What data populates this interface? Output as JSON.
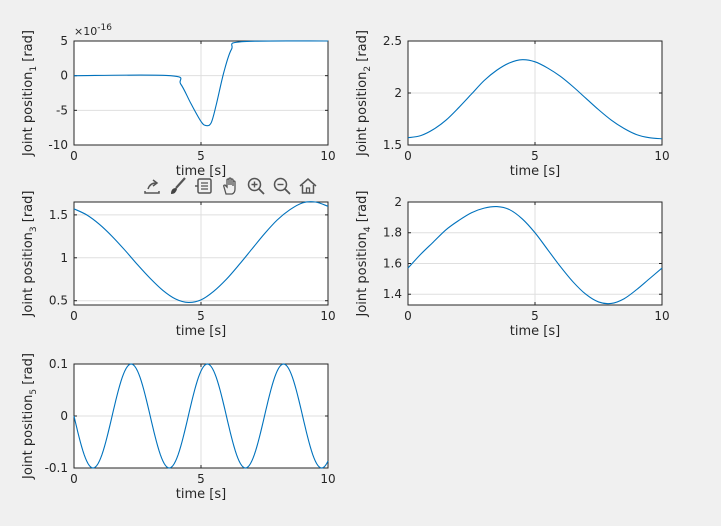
{
  "toolbar": {
    "items": [
      {
        "name": "export-icon"
      },
      {
        "name": "brush-icon"
      },
      {
        "name": "datatips-icon"
      },
      {
        "name": "pan-hand-icon"
      },
      {
        "name": "zoom-in-icon"
      },
      {
        "name": "zoom-out-icon"
      },
      {
        "name": "home-icon"
      }
    ]
  },
  "colors": {
    "series": "#0072bd",
    "background": "#f0f0f0",
    "axes": "#ffffff",
    "grid": "#dfdfdf"
  },
  "chart_data": [
    {
      "type": "line",
      "title": "",
      "xlabel": "time [s]",
      "ylabel": "Joint position",
      "ylabel_sub": "1",
      "ylabel_unit": " [rad]",
      "xlim": [
        0,
        10
      ],
      "ylim": [
        -10,
        5
      ],
      "xticks": [
        "0",
        "5",
        "10"
      ],
      "xtick_values": [
        0,
        5,
        10
      ],
      "yticks": [
        "5",
        "0",
        "-5",
        "-10"
      ],
      "ytick_values": [
        5,
        0,
        -5,
        -10
      ],
      "exponent_base": "×10",
      "exponent_power": "-16",
      "grid": true,
      "x": [
        0,
        3.8,
        4.2,
        4.6,
        5.0,
        5.2,
        5.4,
        5.6,
        5.9,
        6.2,
        6.6,
        10
      ],
      "y": [
        0,
        0,
        -1.2,
        -4.0,
        -6.6,
        -7.2,
        -6.8,
        -4.2,
        0.5,
        3.8,
        4.9,
        5.0
      ]
    },
    {
      "type": "line",
      "title": "",
      "xlabel": "time [s]",
      "ylabel": "Joint position",
      "ylabel_sub": "2",
      "ylabel_unit": " [rad]",
      "xlim": [
        0,
        10
      ],
      "ylim": [
        1.5,
        2.5
      ],
      "xticks": [
        "0",
        "5",
        "10"
      ],
      "xtick_values": [
        0,
        5,
        10
      ],
      "yticks": [
        "2.5",
        "2",
        "1.5"
      ],
      "ytick_values": [
        2.5,
        2,
        1.5
      ],
      "grid": true,
      "x": [
        0,
        0.5,
        1,
        1.5,
        2,
        2.5,
        3,
        3.5,
        4,
        4.5,
        5,
        5.5,
        6,
        6.5,
        7,
        7.5,
        8,
        8.5,
        9,
        9.5,
        10
      ],
      "y": [
        1.57,
        1.59,
        1.65,
        1.74,
        1.86,
        1.99,
        2.12,
        2.22,
        2.29,
        2.32,
        2.3,
        2.24,
        2.16,
        2.06,
        1.95,
        1.84,
        1.74,
        1.66,
        1.6,
        1.57,
        1.56
      ]
    },
    {
      "type": "line",
      "title": "",
      "xlabel": "time [s]",
      "ylabel": "Joint position",
      "ylabel_sub": "3",
      "ylabel_unit": " [rad]",
      "xlim": [
        0,
        10
      ],
      "ylim": [
        0.45,
        1.65
      ],
      "xticks": [
        "0",
        "5",
        "10"
      ],
      "xtick_values": [
        0,
        5,
        10
      ],
      "yticks": [
        "1.5",
        "1",
        "0.5"
      ],
      "ytick_values": [
        1.5,
        1,
        0.5
      ],
      "grid": true,
      "x": [
        0,
        0.5,
        1,
        1.5,
        2,
        2.5,
        3,
        3.5,
        4,
        4.5,
        5,
        5.5,
        6,
        6.5,
        7,
        7.5,
        8,
        8.5,
        9,
        9.5,
        10
      ],
      "y": [
        1.57,
        1.5,
        1.39,
        1.25,
        1.09,
        0.92,
        0.76,
        0.62,
        0.52,
        0.48,
        0.51,
        0.61,
        0.75,
        0.92,
        1.1,
        1.28,
        1.44,
        1.56,
        1.64,
        1.65,
        1.6
      ]
    },
    {
      "type": "line",
      "title": "",
      "xlabel": "time [s]",
      "ylabel": "Joint position",
      "ylabel_sub": "4",
      "ylabel_unit": " [rad]",
      "xlim": [
        0,
        10
      ],
      "ylim": [
        1.33,
        2.0
      ],
      "xticks": [
        "0",
        "5",
        "10"
      ],
      "xtick_values": [
        0,
        5,
        10
      ],
      "yticks": [
        "2",
        "1.8",
        "1.6",
        "1.4"
      ],
      "ytick_values": [
        2,
        1.8,
        1.6,
        1.4
      ],
      "grid": true,
      "x": [
        0,
        0.5,
        1,
        1.5,
        2,
        2.5,
        3,
        3.5,
        4,
        4.5,
        5,
        5.5,
        6,
        6.5,
        7,
        7.5,
        8,
        8.5,
        9,
        9.5,
        10
      ],
      "y": [
        1.57,
        1.66,
        1.74,
        1.82,
        1.88,
        1.93,
        1.96,
        1.97,
        1.95,
        1.89,
        1.8,
        1.69,
        1.58,
        1.48,
        1.4,
        1.35,
        1.34,
        1.37,
        1.43,
        1.5,
        1.57
      ]
    },
    {
      "type": "line",
      "title": "",
      "xlabel": "time [s]",
      "ylabel": "Joint position",
      "ylabel_sub": "5",
      "ylabel_unit": " [rad]",
      "xlim": [
        0,
        10
      ],
      "ylim": [
        -0.1,
        0.1
      ],
      "xticks": [
        "0",
        "5",
        "10"
      ],
      "xtick_values": [
        0,
        5,
        10
      ],
      "yticks": [
        "0.1",
        "0",
        "-0.1"
      ],
      "ytick_values": [
        0.1,
        0,
        -0.1
      ],
      "grid": true,
      "func": "sin",
      "amplitude": 0.1,
      "period": 3.0,
      "phase_time": 0.75
    }
  ]
}
